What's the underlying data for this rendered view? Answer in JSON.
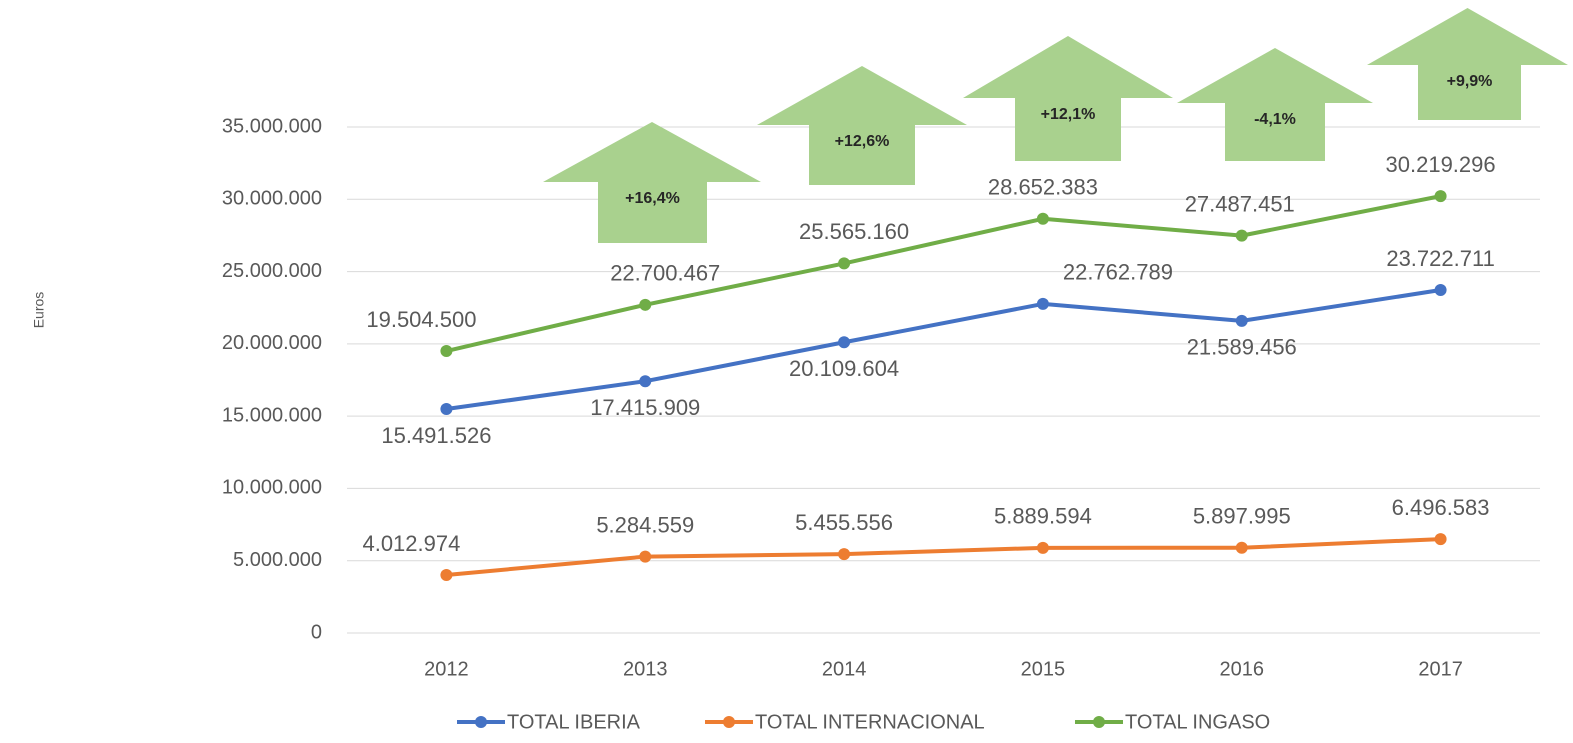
{
  "chart_data": {
    "type": "line",
    "y_label": "Euros",
    "categories": [
      "2012",
      "2013",
      "2014",
      "2015",
      "2016",
      "2017"
    ],
    "series": [
      {
        "name": "TOTAL IBERIA",
        "color": "#4472c4",
        "values": [
          15491526,
          17415909,
          20109604,
          22762789,
          21589456,
          23722711
        ],
        "value_labels": [
          "15.491.526",
          "17.415.909",
          "20.109.604",
          "22.762.789",
          "21.589.456",
          "23.722.711"
        ]
      },
      {
        "name": "TOTAL INTERNACIONAL",
        "color": "#ed7d31",
        "values": [
          4012974,
          5284559,
          5455556,
          5889594,
          5897995,
          6496583
        ],
        "value_labels": [
          "4.012.974",
          "5.284.559",
          "5.455.556",
          "5.889.594",
          "5.897.995",
          "6.496.583"
        ]
      },
      {
        "name": "TOTAL INGASO",
        "color": "#70ad47",
        "values": [
          19504500,
          22700467,
          25565160,
          28652383,
          27487451,
          30219296
        ],
        "value_labels": [
          "19.504.500",
          "22.700.467",
          "25.565.160",
          "28.652.383",
          "27.487.451",
          "30.219.296"
        ]
      }
    ],
    "annotations": [
      "+16,4%",
      "+12,6%",
      "+12,1%",
      "-4,1%",
      "+9,9%"
    ],
    "ylim": [
      0,
      35000000
    ],
    "yticks": [
      0,
      {
        "value": 5000000,
        "label": "5.000.000"
      },
      {
        "value": 10000000,
        "label": "10.000.000"
      },
      {
        "value": 15000000,
        "label": "15.000.000"
      },
      {
        "value": 20000000,
        "label": "20.000.000"
      },
      {
        "value": 25000000,
        "label": "25.000.000"
      },
      {
        "value": 30000000,
        "label": "30.000.000"
      },
      {
        "value": 35000000,
        "label": "35.000.000"
      }
    ],
    "grid": true,
    "legend": "bottom",
    "arrow_color": "#a9d18e"
  }
}
